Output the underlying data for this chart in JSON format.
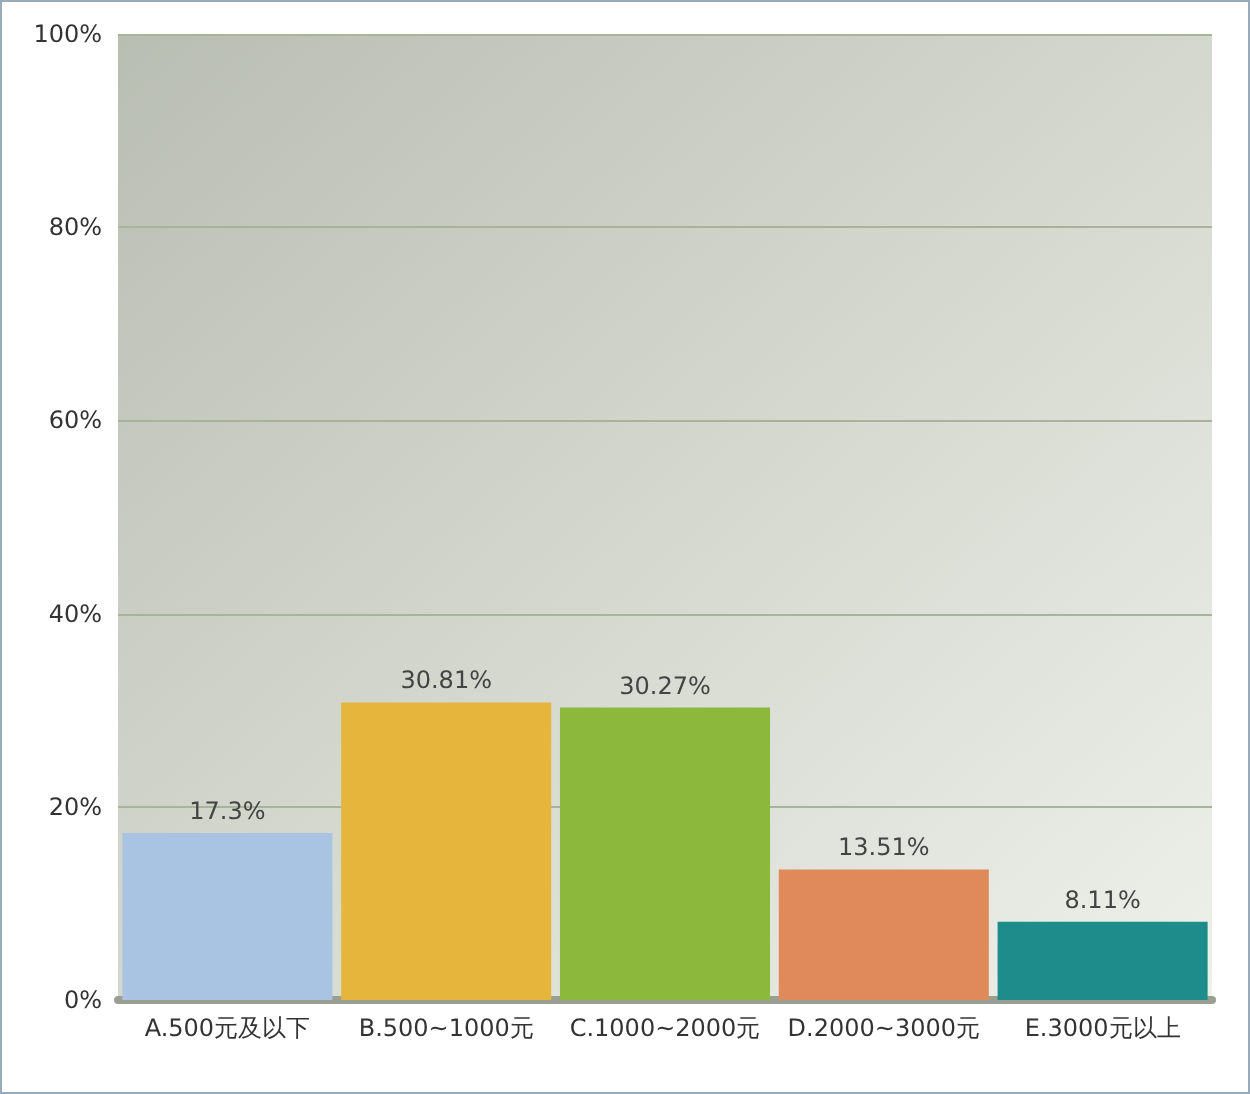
{
  "chart_data": {
    "type": "bar",
    "categories": [
      "A.500元及以下",
      "B.500~1000元",
      "C.1000~2000元",
      "D.2000~3000元",
      "E.3000元以上"
    ],
    "values": [
      17.3,
      30.81,
      30.27,
      13.51,
      8.11
    ],
    "colors": [
      "#a9c4e2",
      "#e6b53c",
      "#8cb83c",
      "#e08a5c",
      "#1f8c8c"
    ],
    "value_labels": [
      "17.3%",
      "30.81%",
      "30.27%",
      "13.51%",
      "8.11%"
    ],
    "ylim": [
      0,
      100
    ],
    "yticks": [
      {
        "value": 0,
        "label": "0%"
      },
      {
        "value": 20,
        "label": "20%"
      },
      {
        "value": 40,
        "label": "40%"
      },
      {
        "value": 60,
        "label": "60%"
      },
      {
        "value": 80,
        "label": "80%"
      },
      {
        "value": 100,
        "label": "100%"
      }
    ],
    "grid": "y"
  }
}
